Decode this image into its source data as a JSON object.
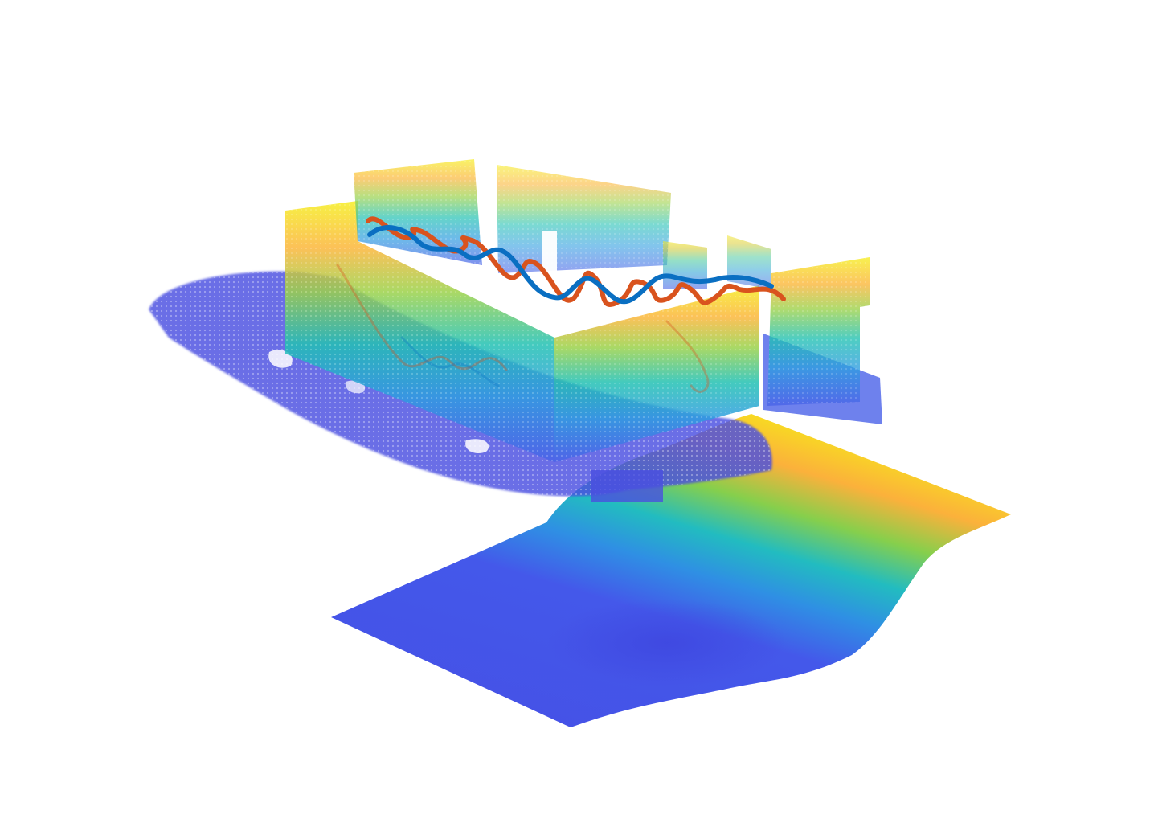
{
  "figure": {
    "description_visible": false,
    "colormap": "parula",
    "colors": {
      "background": "#ffffff",
      "parula_low": "#3e26a8",
      "parula_blue": "#4363e8",
      "parula_mid_blue": "#2c9ae0",
      "parula_teal": "#1fbfb5",
      "parula_green": "#8ccf4a",
      "parula_orange": "#fcae3b",
      "parula_yellow": "#f9fb0e",
      "trajectory_blue": "#0a6fc2",
      "trajectory_orange": "#d9531e"
    },
    "layers": [
      "voxel-map",
      "trajectories",
      "height-surface"
    ]
  }
}
